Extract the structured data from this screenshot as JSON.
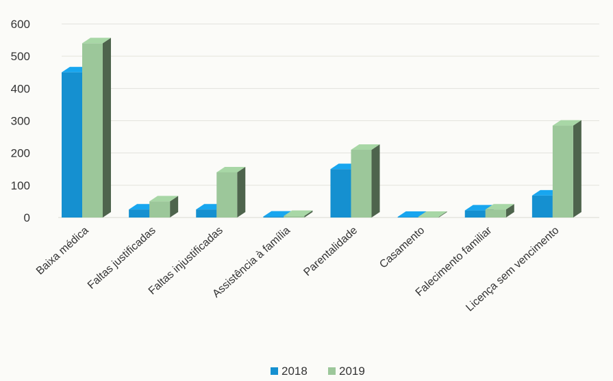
{
  "chart_data": {
    "type": "bar",
    "style": "3d-clustered",
    "categories": [
      "Baixa médica",
      "Faltas justificadas",
      "Faltas injustificadas",
      "Assistência à família",
      "Parentalidade",
      "Casamento",
      "Falecimento familiar",
      "Licença sem vencimento"
    ],
    "series": [
      {
        "name": "2018",
        "color": "#1590d0",
        "values": [
          450,
          25,
          25,
          3,
          150,
          2,
          22,
          68
        ]
      },
      {
        "name": "2019",
        "color": "#9cc79a",
        "values": [
          540,
          50,
          140,
          5,
          210,
          2,
          25,
          285
        ]
      }
    ],
    "yticks": [
      0,
      100,
      200,
      300,
      400,
      500,
      600
    ],
    "ylim": [
      0,
      600
    ],
    "grid": true,
    "legend": "bottom-center"
  }
}
